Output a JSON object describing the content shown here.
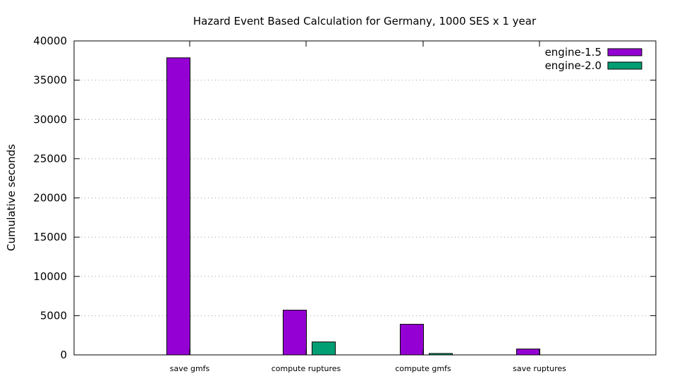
{
  "chart_data": {
    "type": "bar",
    "title": "Hazard Event Based Calculation for Germany, 1000 SES x 1 year",
    "xlabel": "",
    "ylabel": "Cumulative seconds",
    "ylim": [
      0,
      40000
    ],
    "yticks": [
      0,
      5000,
      10000,
      15000,
      20000,
      25000,
      30000,
      35000,
      40000
    ],
    "grid": true,
    "legend_position": "top-right",
    "categories": [
      "save gmfs",
      "compute ruptures",
      "compute gmfs",
      "save ruptures"
    ],
    "series": [
      {
        "name": "engine-1.5",
        "color": "#9400d3",
        "values": [
          37850,
          5700,
          3900,
          750
        ]
      },
      {
        "name": "engine-2.0",
        "color": "#009e73",
        "values": [
          0,
          1650,
          180,
          0
        ]
      }
    ]
  }
}
